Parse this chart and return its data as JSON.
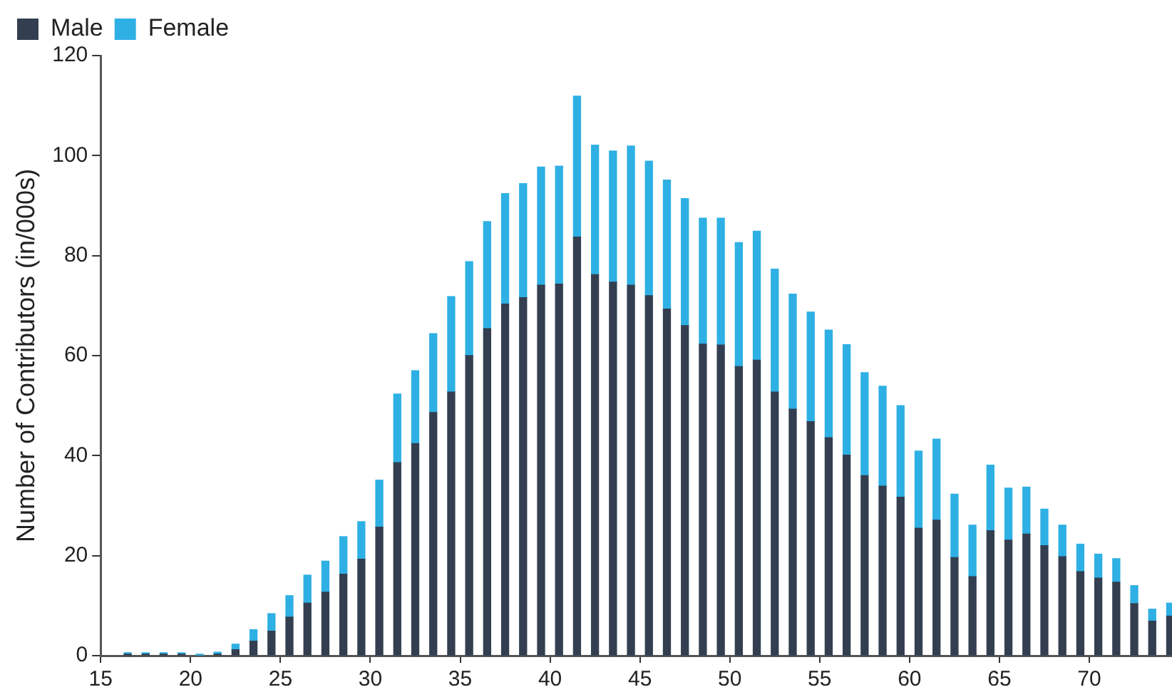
{
  "chart_data": {
    "type": "bar",
    "stacked": true,
    "ylabel": "Number of Contributors (in/000s)",
    "x": [
      16.5,
      17.5,
      18.5,
      19.5,
      20.5,
      21.5,
      22.5,
      23.5,
      24.5,
      25.5,
      26.5,
      27.5,
      28.5,
      29.5,
      30.5,
      31.5,
      32.5,
      33.5,
      34.5,
      35.5,
      36.5,
      37.5,
      38.5,
      39.5,
      40.5,
      41.5,
      42.5,
      43.5,
      44.5,
      45.5,
      46.5,
      47.5,
      48.5,
      49.5,
      50.5,
      51.5,
      52.5,
      53.5,
      54.5,
      55.5,
      56.5,
      57.5,
      58.5,
      59.5,
      60.5,
      61.5,
      62.5,
      63.5,
      64.5,
      65.5,
      66.5,
      67.5,
      68.5,
      69.5,
      70.5,
      71.5,
      72.5,
      73.5,
      74.5
    ],
    "series": [
      {
        "name": "Male",
        "color": "#333f50",
        "values": [
          0.1,
          0.1,
          0.1,
          0.1,
          null,
          0.3,
          1.2,
          2.9,
          4.9,
          7.7,
          10.5,
          12.7,
          16.3,
          19.3,
          25.7,
          38.6,
          42.4,
          48.6,
          52.7,
          60.0,
          65.4,
          70.3,
          71.6,
          74.1,
          74.3,
          83.7,
          76.2,
          74.7,
          74.1,
          72.0,
          69.3,
          66.0,
          62.3,
          62.1,
          57.8,
          59.1,
          52.7,
          49.3,
          46.8,
          43.6,
          40.1,
          36.0,
          33.9,
          31.7,
          25.5,
          27.1,
          19.6,
          15.8,
          25.0,
          23.1,
          24.3,
          22.0,
          19.8,
          16.8,
          15.5,
          14.7,
          10.4,
          6.9,
          7.9
        ]
      },
      {
        "name": "Female",
        "color": "#2eb0e4",
        "values": [
          0.2,
          0.1,
          0.1,
          0.2,
          0.3,
          0.4,
          1.1,
          2.3,
          3.5,
          4.3,
          5.6,
          6.2,
          7.5,
          7.5,
          9.4,
          13.7,
          14.6,
          15.8,
          19.1,
          18.8,
          21.4,
          22.1,
          22.8,
          23.6,
          23.6,
          28.2,
          25.9,
          26.2,
          27.8,
          26.9,
          25.8,
          25.4,
          25.2,
          25.4,
          24.8,
          25.8,
          24.6,
          23.0,
          21.9,
          21.5,
          22.1,
          20.6,
          20.0,
          18.3,
          15.4,
          16.2,
          12.7,
          10.3,
          13.1,
          10.4,
          9.4,
          7.3,
          6.3,
          5.5,
          4.8,
          4.7,
          3.6,
          2.4,
          2.6
        ]
      }
    ],
    "xlim": [
      15,
      74.6
    ],
    "xticks": [
      15,
      20,
      25,
      30,
      35,
      40,
      45,
      50,
      55,
      60,
      65,
      70
    ],
    "ylim": [
      0,
      120
    ],
    "yticks": [
      0,
      20,
      40,
      60,
      80,
      100,
      120
    ],
    "grid": false,
    "legend": "top left"
  }
}
